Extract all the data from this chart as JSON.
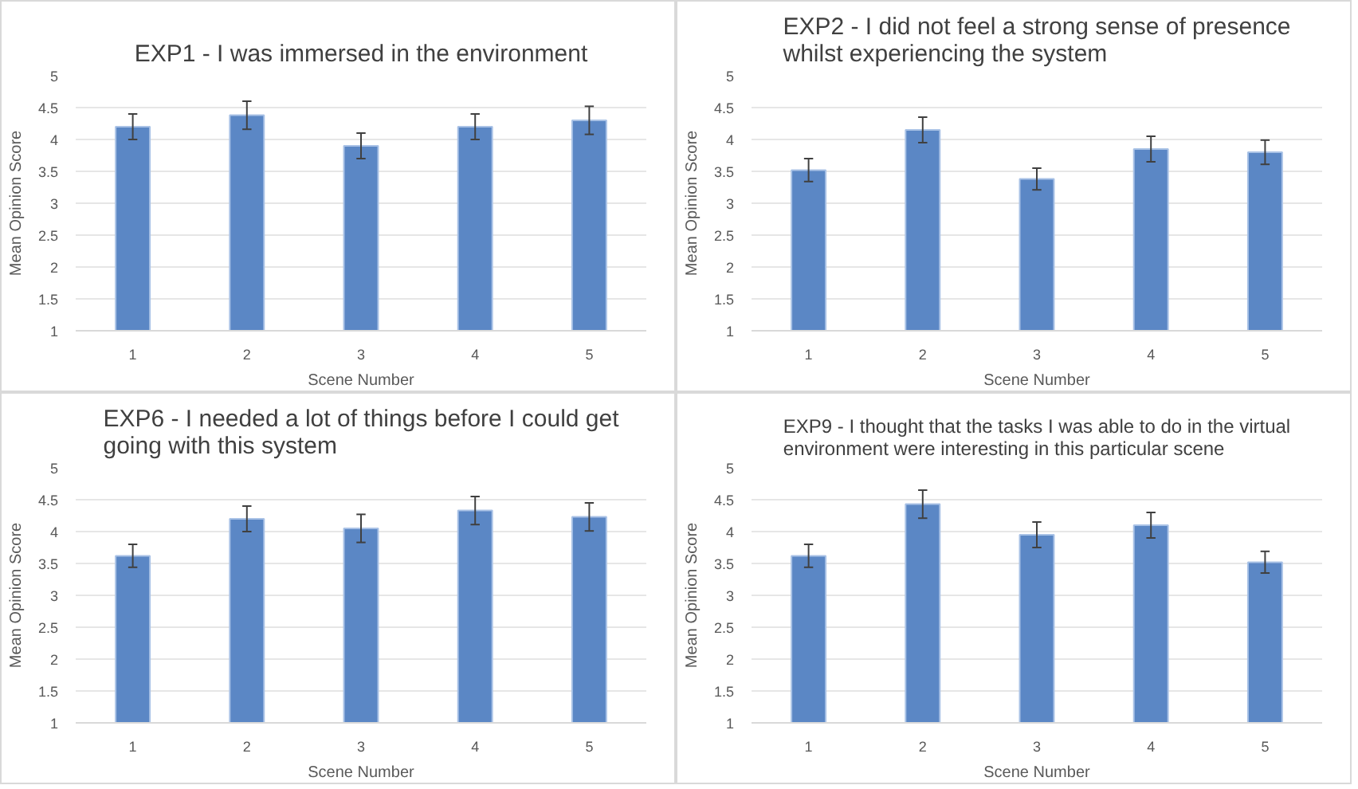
{
  "chart_data": [
    {
      "type": "bar",
      "title": "EXP1 - I was immersed in the environment",
      "xlabel": "Scene Number",
      "ylabel": "Mean Opinion Score",
      "categories": [
        "1",
        "2",
        "3",
        "4",
        "5"
      ],
      "values": [
        4.2,
        4.38,
        3.9,
        4.2,
        4.3
      ],
      "errors": [
        0.2,
        0.22,
        0.2,
        0.2,
        0.22
      ],
      "color": "#5b87c5",
      "ylim": [
        1,
        5
      ],
      "yticks": [
        1,
        1.5,
        2,
        2.5,
        3,
        3.5,
        4,
        4.5,
        5
      ],
      "grid": "y",
      "legend": false
    },
    {
      "type": "bar",
      "title": "EXP2 - I did not feel a strong sense of presence whilst experiencing the system",
      "xlabel": "Scene Number",
      "ylabel": "Mean Opinion Score",
      "categories": [
        "1",
        "2",
        "3",
        "4",
        "5"
      ],
      "values": [
        3.52,
        4.15,
        3.38,
        3.85,
        3.8
      ],
      "errors": [
        0.18,
        0.2,
        0.17,
        0.2,
        0.19
      ],
      "color": "#5b87c5",
      "ylim": [
        1,
        5
      ],
      "yticks": [
        1,
        1.5,
        2,
        2.5,
        3,
        3.5,
        4,
        4.5,
        5
      ],
      "grid": "y",
      "legend": false
    },
    {
      "type": "bar",
      "title": "EXP6 - I needed a lot of things before I could get going with this system",
      "xlabel": "Scene Number",
      "ylabel": "Mean Opinion Score",
      "categories": [
        "1",
        "2",
        "3",
        "4",
        "5"
      ],
      "values": [
        3.62,
        4.2,
        4.05,
        4.33,
        4.23
      ],
      "errors": [
        0.18,
        0.2,
        0.22,
        0.22,
        0.22
      ],
      "color": "#5b87c5",
      "ylim": [
        1,
        5
      ],
      "yticks": [
        1,
        1.5,
        2,
        2.5,
        3,
        3.5,
        4,
        4.5,
        5
      ],
      "grid": "y",
      "legend": false
    },
    {
      "type": "bar",
      "title": "EXP9 - I thought that the tasks I was able to do in the virtual environment were interesting in this particular scene",
      "xlabel": "Scene Number",
      "ylabel": "Mean Opinion Score",
      "categories": [
        "1",
        "2",
        "3",
        "4",
        "5"
      ],
      "values": [
        3.62,
        4.43,
        3.95,
        4.1,
        3.52
      ],
      "errors": [
        0.18,
        0.22,
        0.2,
        0.2,
        0.17
      ],
      "color": "#5b87c5",
      "ylim": [
        1,
        5
      ],
      "yticks": [
        1,
        1.5,
        2,
        2.5,
        3,
        3.5,
        4,
        4.5,
        5
      ],
      "grid": "y",
      "legend": false
    }
  ]
}
